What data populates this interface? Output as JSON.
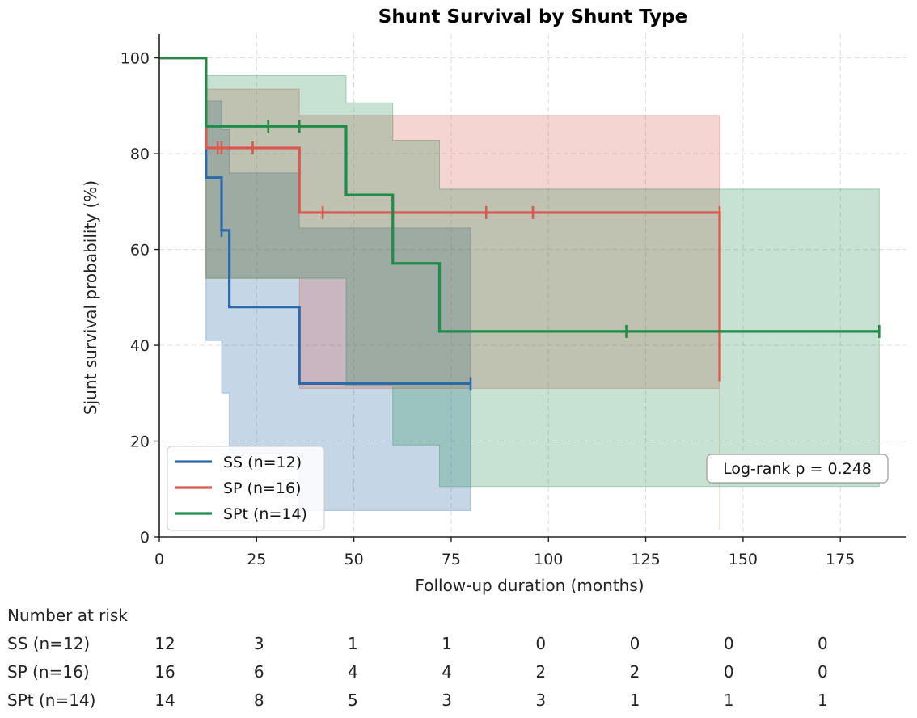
{
  "chart_data": {
    "type": "kaplan-meier",
    "title": "Shunt Survival by Shunt Type",
    "xlabel": "Follow-up duration (months)",
    "ylabel": "Sjunt survival probability (%)",
    "xlim": [
      0,
      192
    ],
    "ylim": [
      0,
      105
    ],
    "xticks": [
      0,
      25,
      50,
      75,
      100,
      125,
      150,
      175
    ],
    "yticks": [
      0,
      20,
      40,
      60,
      80,
      100
    ],
    "grid": true,
    "legend_position": "bottom-left",
    "annotation": "Log-rank  p = 0.248",
    "series": [
      {
        "name": "SS (n=12)",
        "color": "#2d6aa8",
        "band_opacity": 0.28,
        "steps": [
          [
            0,
            100
          ],
          [
            12,
            75
          ],
          [
            16,
            64
          ],
          [
            18,
            48
          ],
          [
            36,
            32
          ],
          [
            80,
            32
          ]
        ],
        "ci_lower": [
          [
            12,
            41
          ],
          [
            16,
            30
          ],
          [
            18,
            17.5
          ],
          [
            36,
            5.5
          ],
          [
            80,
            5.5
          ]
        ],
        "ci_upper": [
          [
            12,
            91
          ],
          [
            16,
            85
          ],
          [
            18,
            76
          ],
          [
            36,
            64.5
          ],
          [
            80,
            64.5
          ]
        ],
        "censors": [
          [
            12,
            77
          ],
          [
            16,
            64
          ],
          [
            80,
            32
          ]
        ]
      },
      {
        "name": "SP (n=16)",
        "color": "#d9594c",
        "band_opacity": 0.25,
        "steps": [
          [
            0,
            100
          ],
          [
            12,
            81.2
          ],
          [
            36,
            67.7
          ],
          [
            144,
            32.5
          ]
        ],
        "ci_lower": [
          [
            12,
            54
          ],
          [
            36,
            31
          ],
          [
            144,
            1.5
          ]
        ],
        "ci_upper": [
          [
            12,
            93.5
          ],
          [
            36,
            88
          ],
          [
            144,
            88
          ]
        ],
        "censors": [
          [
            15,
            81.2
          ],
          [
            16,
            81.2
          ],
          [
            24,
            81.2
          ],
          [
            42,
            67.7
          ],
          [
            84,
            67.7
          ],
          [
            96,
            67.7
          ],
          [
            144,
            67.7
          ]
        ]
      },
      {
        "name": "SPt (n=14)",
        "color": "#1f8c4a",
        "band_opacity": 0.25,
        "steps": [
          [
            0,
            100
          ],
          [
            12,
            85.7
          ],
          [
            48,
            71.4
          ],
          [
            60,
            57.1
          ],
          [
            72,
            42.9
          ],
          [
            185,
            42.9
          ]
        ],
        "ci_lower": [
          [
            12,
            54
          ],
          [
            48,
            31.5
          ],
          [
            60,
            19.2
          ],
          [
            72,
            10.5
          ],
          [
            185,
            10.5
          ]
        ],
        "ci_upper": [
          [
            12,
            96.3
          ],
          [
            48,
            90.6
          ],
          [
            60,
            82.8
          ],
          [
            72,
            72.6
          ],
          [
            185,
            72.6
          ]
        ],
        "censors": [
          [
            28,
            85.7
          ],
          [
            36,
            85.7
          ],
          [
            120,
            42.9
          ],
          [
            185,
            42.9
          ]
        ]
      }
    ],
    "risk_table": {
      "title": "Number at risk",
      "times": [
        0,
        25,
        50,
        75,
        100,
        125,
        150,
        175
      ],
      "rows": [
        {
          "label": "SS (n=12)",
          "values": [
            "12",
            "3",
            "1",
            "1",
            "0",
            "0",
            "0",
            "0"
          ]
        },
        {
          "label": "SP (n=16)",
          "values": [
            "16",
            "6",
            "4",
            "4",
            "2",
            "2",
            "0",
            "0"
          ]
        },
        {
          "label": "SPt (n=14)",
          "values": [
            "14",
            "8",
            "5",
            "3",
            "3",
            "1",
            "1",
            "1"
          ]
        }
      ]
    }
  }
}
